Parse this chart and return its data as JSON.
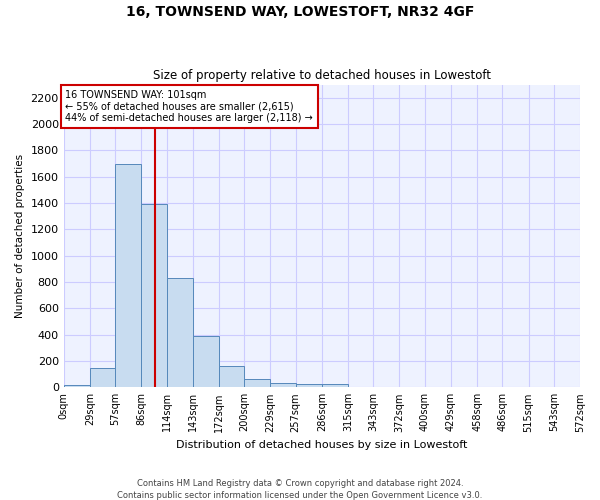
{
  "title": "16, TOWNSEND WAY, LOWESTOFT, NR32 4GF",
  "subtitle": "Size of property relative to detached houses in Lowestoft",
  "xlabel": "Distribution of detached houses by size in Lowestoft",
  "ylabel": "Number of detached properties",
  "footer_line1": "Contains HM Land Registry data © Crown copyright and database right 2024.",
  "footer_line2": "Contains public sector information licensed under the Open Government Licence v3.0.",
  "bin_edges": [
    0,
    29,
    57,
    86,
    114,
    143,
    172,
    200,
    229,
    257,
    286,
    315,
    343,
    372,
    400,
    429,
    458,
    486,
    515,
    543,
    572
  ],
  "bin_labels": [
    "0sqm",
    "29sqm",
    "57sqm",
    "86sqm",
    "114sqm",
    "143sqm",
    "172sqm",
    "200sqm",
    "229sqm",
    "257sqm",
    "286sqm",
    "315sqm",
    "343sqm",
    "372sqm",
    "400sqm",
    "429sqm",
    "458sqm",
    "486sqm",
    "515sqm",
    "543sqm",
    "572sqm"
  ],
  "bar_values": [
    15,
    150,
    1700,
    1390,
    830,
    390,
    160,
    65,
    30,
    25,
    25,
    5,
    0,
    0,
    0,
    0,
    0,
    0,
    0,
    0
  ],
  "bar_color": "#c8dcf0",
  "bar_edge_color": "#5588bb",
  "grid_color": "#ccccff",
  "background_color": "#eef2ff",
  "red_line_x": 101,
  "annotation_text": "16 TOWNSEND WAY: 101sqm\n← 55% of detached houses are smaller (2,615)\n44% of semi-detached houses are larger (2,118) →",
  "annotation_box_color": "#ffffff",
  "annotation_box_edge_color": "#cc0000",
  "ylim": [
    0,
    2300
  ],
  "yticks": [
    0,
    200,
    400,
    600,
    800,
    1000,
    1200,
    1400,
    1600,
    1800,
    2000,
    2200
  ]
}
